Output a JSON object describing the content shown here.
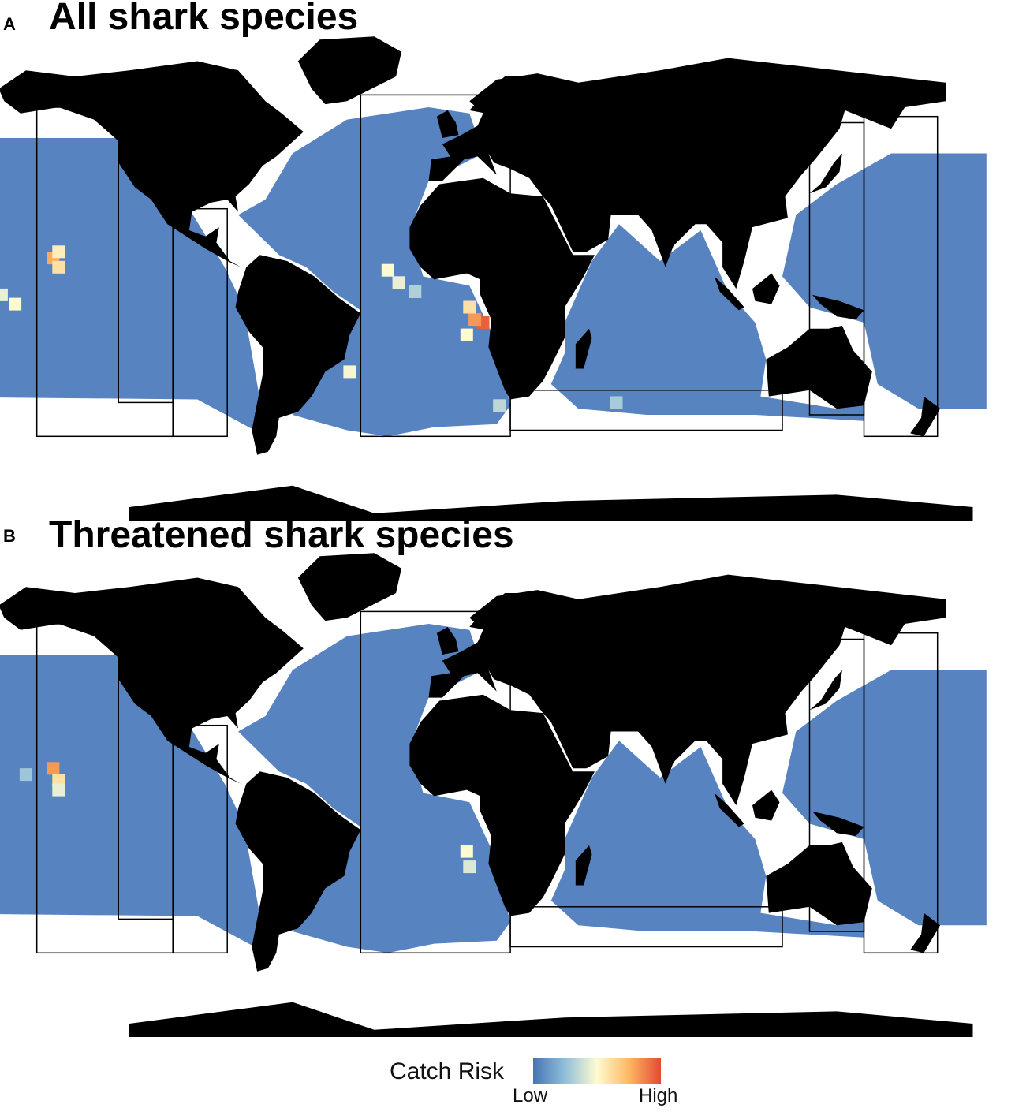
{
  "panels": [
    {
      "letter": "A",
      "title": "All shark species",
      "hotspots": [
        {
          "lon": -148,
          "lat": 11,
          "risk": 0.78
        },
        {
          "lon": -146,
          "lat": 8,
          "risk": 0.6
        },
        {
          "lon": -146,
          "lat": 13,
          "risk": 0.55
        },
        {
          "lon": -162,
          "lat": -4,
          "risk": 0.5
        },
        {
          "lon": -167,
          "lat": -1,
          "risk": 0.45
        },
        {
          "lon": -177,
          "lat": -3,
          "risk": 0.42
        },
        {
          "lon": -193,
          "lat": 30,
          "risk": 0.35
        },
        {
          "lon": 10,
          "lat": -10,
          "risk": 0.95
        },
        {
          "lon": 7,
          "lat": -9,
          "risk": 0.82
        },
        {
          "lon": 5,
          "lat": -5,
          "risk": 0.6
        },
        {
          "lon": 4,
          "lat": -14,
          "risk": 0.5
        },
        {
          "lon": -25,
          "lat": 7,
          "risk": 0.5
        },
        {
          "lon": -21,
          "lat": 3,
          "risk": 0.45
        },
        {
          "lon": -39,
          "lat": -26,
          "risk": 0.48
        },
        {
          "lon": 16,
          "lat": -37,
          "risk": 0.35
        },
        {
          "lon": 59,
          "lat": -36,
          "risk": 0.3
        },
        {
          "lon": -15,
          "lat": 0,
          "risk": 0.32
        }
      ]
    },
    {
      "letter": "B",
      "title": "Threatened shark species",
      "hotspots": [
        {
          "lon": -148,
          "lat": 13,
          "risk": 0.82
        },
        {
          "lon": -146,
          "lat": 9,
          "risk": 0.6
        },
        {
          "lon": -146,
          "lat": 6,
          "risk": 0.45
        },
        {
          "lon": -158,
          "lat": 11,
          "risk": 0.28
        },
        {
          "lon": 4,
          "lat": -14,
          "risk": 0.5
        },
        {
          "lon": 5,
          "lat": -19,
          "risk": 0.42
        }
      ]
    }
  ],
  "legend": {
    "title": "Catch Risk",
    "low_label": "Low",
    "high_label": "High",
    "colors": [
      "#4575b4",
      "#91bfdb",
      "#fffbd0",
      "#fdb863",
      "#e34a33"
    ]
  },
  "colors": {
    "land": "#000000",
    "low_risk": "#4a78bc",
    "ocean_empty": "#ffffff",
    "boundary": "#000000"
  }
}
